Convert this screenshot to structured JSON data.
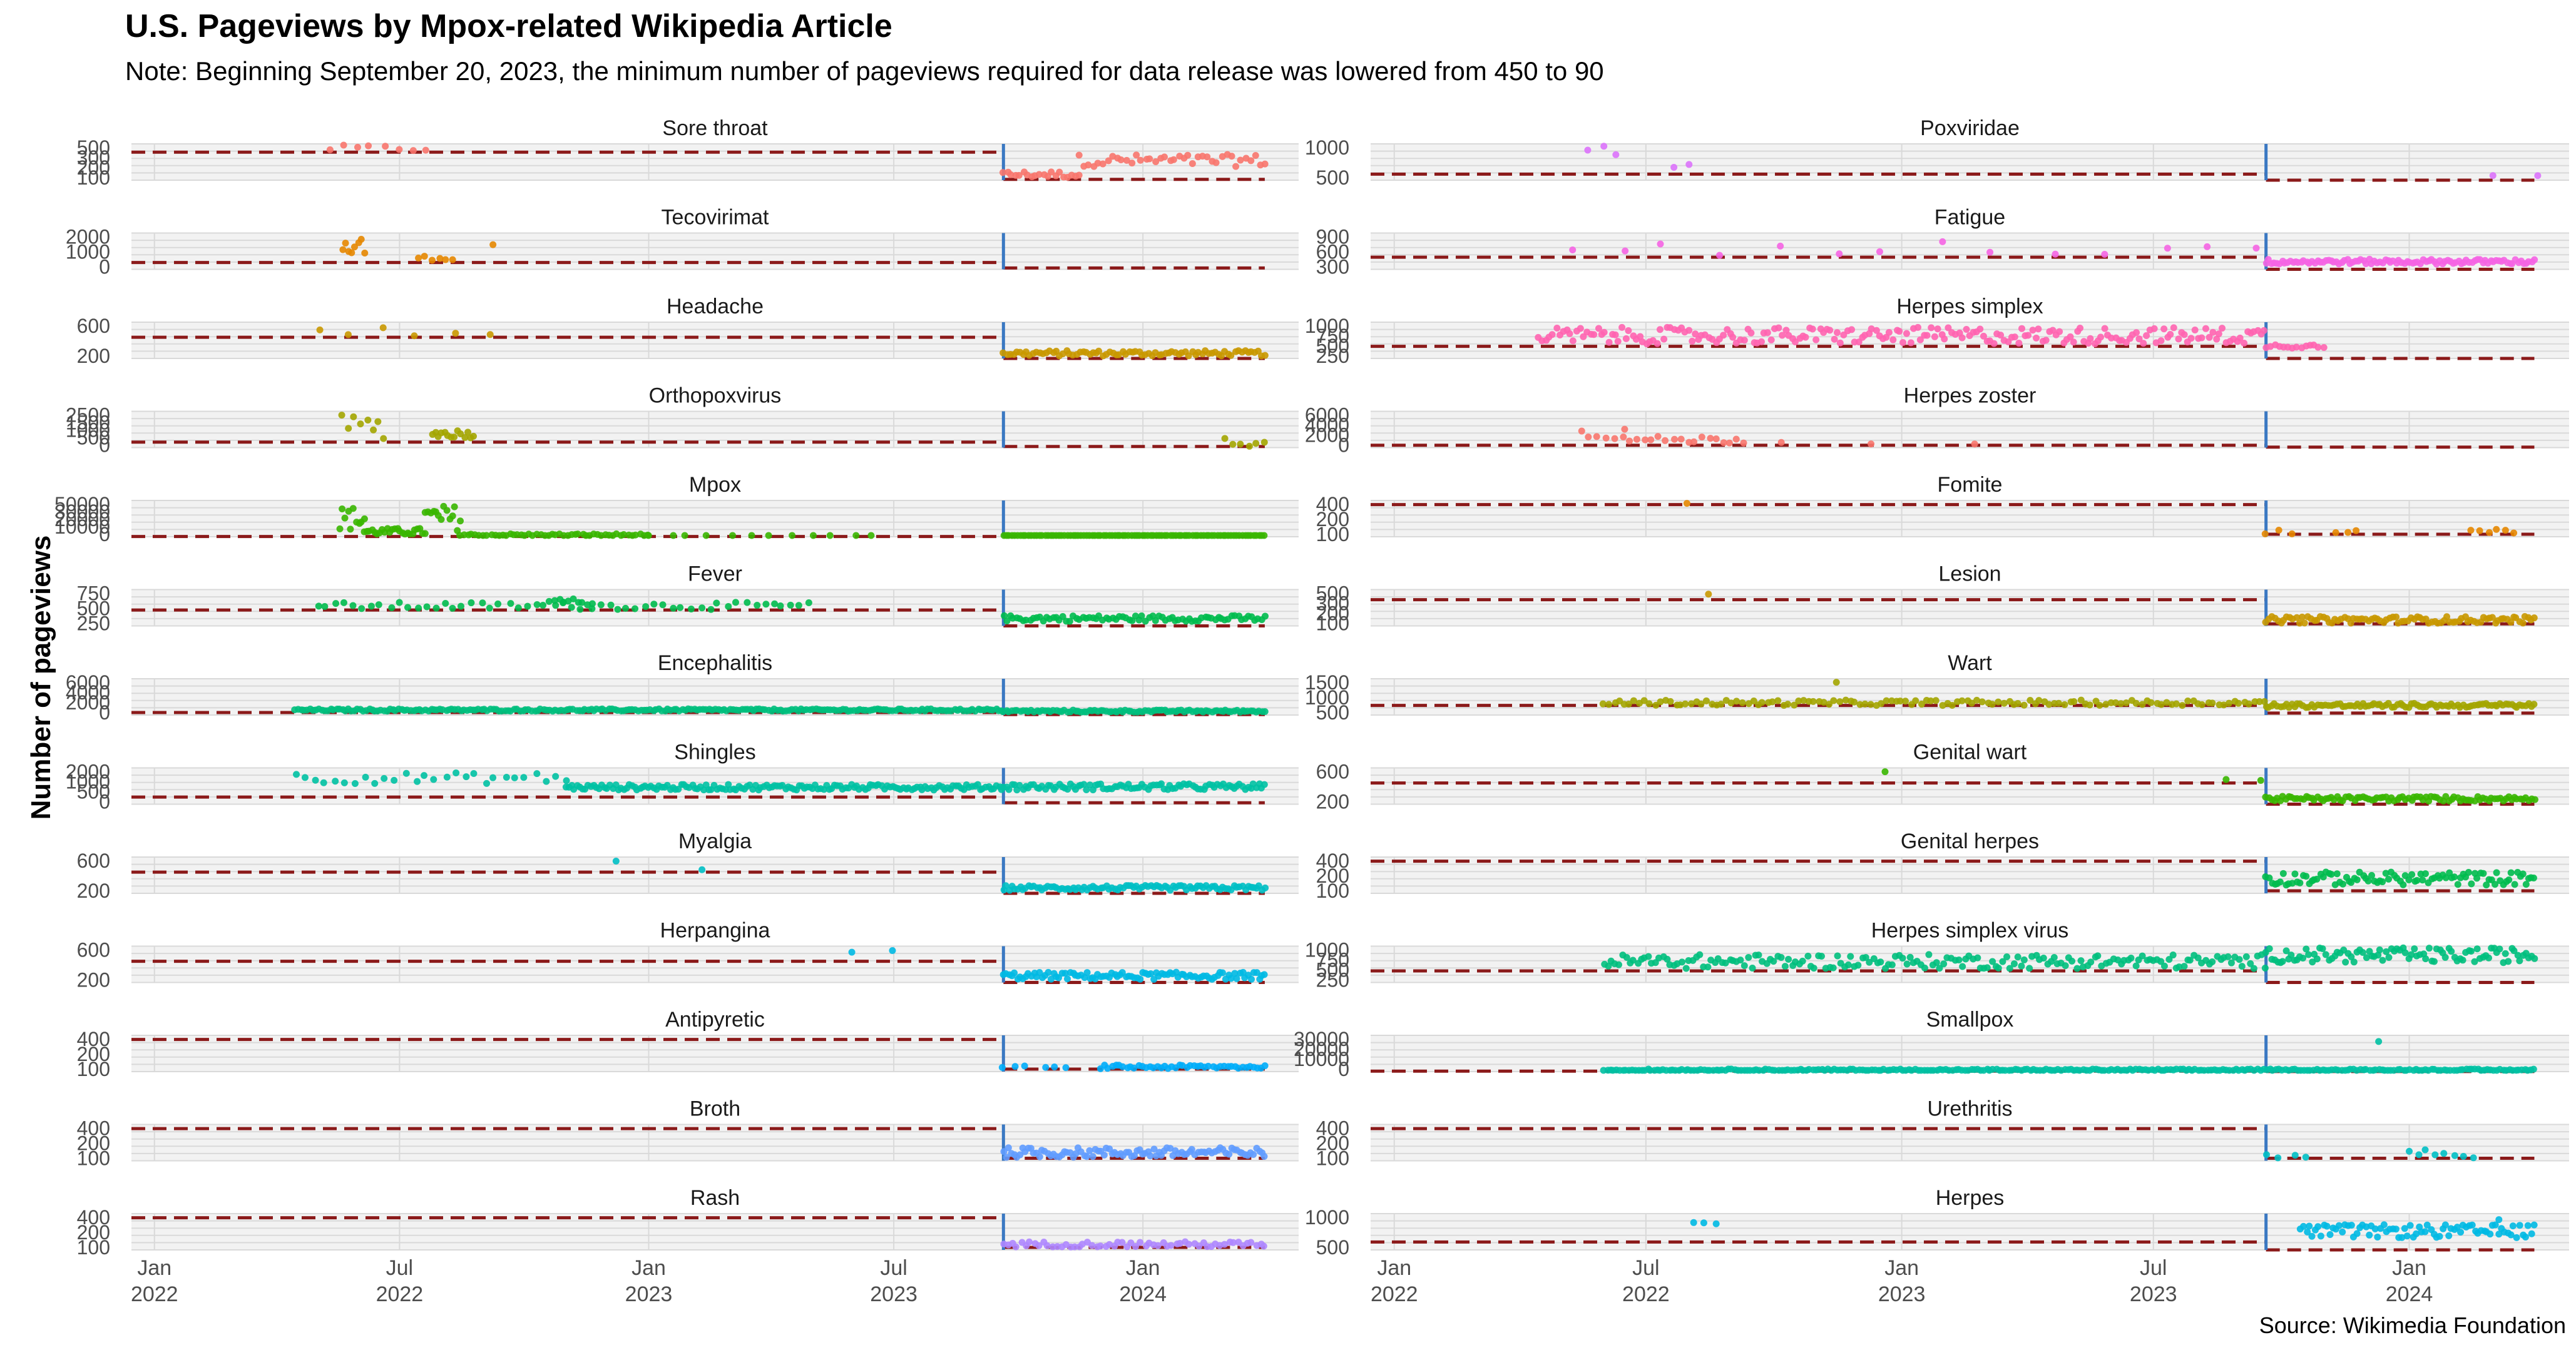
{
  "chart_data": {
    "type": "scatter",
    "title": "U.S. Pageviews by Mpox-related Wikipedia Article",
    "subtitle": "Note: Beginning September 20, 2023, the minimum number of pageviews required for data release was lowered from 450 to 90",
    "ylabel": "Number of pageviews",
    "caption": "Source: Wikimedia Foundation",
    "x_range": [
      "2021-12-15",
      "2024-04-25"
    ],
    "x_ticks": [
      {
        "date": "2022-01-01",
        "line1": "Jan",
        "line2": "2022"
      },
      {
        "date": "2022-07-01",
        "line1": "Jul",
        "line2": "2022"
      },
      {
        "date": "2023-01-01",
        "line1": "Jan",
        "line2": "2023"
      },
      {
        "date": "2023-07-01",
        "line1": "Jul",
        "line2": "2023"
      },
      {
        "date": "2024-01-01",
        "line1": "Jan",
        "line2": "2024"
      }
    ],
    "threshold": {
      "change_date": "2023-09-20",
      "before": 450,
      "after": 90,
      "threshold_color": "#8b1a1a",
      "change_line_color": "#3a78c2"
    },
    "panels": [
      {
        "name": "Sore throat",
        "color": "#f8766d",
        "ylim": [
          80,
          560
        ],
        "ticks": [
          "500",
          "300",
          "200",
          "100"
        ],
        "segments": [
          {
            "from": "2022-05-10",
            "to": "2022-07-20",
            "lo": 455,
            "hi": 545,
            "n": 8
          },
          {
            "from": "2023-09-20",
            "to": "2023-11-15",
            "lo": 110,
            "hi": 200,
            "n": 20
          },
          {
            "from": "2023-11-15",
            "to": "2024-03-31",
            "lo": 260,
            "hi": 420,
            "n": 40
          }
        ]
      },
      {
        "name": "Tecovirimat",
        "color": "#e58700",
        "ylim": [
          0,
          2400
        ],
        "ticks": [
          "2000",
          "1000",
          "0"
        ],
        "segments": [
          {
            "from": "2022-05-20",
            "to": "2022-06-05",
            "lo": 500,
            "hi": 2300,
            "n": 8
          },
          {
            "from": "2022-07-15",
            "to": "2022-08-10",
            "lo": 600,
            "hi": 900,
            "n": 6
          },
          {
            "from": "2022-09-01",
            "to": "2022-09-15",
            "lo": 1400,
            "hi": 1700,
            "n": 1
          }
        ]
      },
      {
        "name": "Headache",
        "color": "#c99800",
        "ylim": [
          100,
          700
        ],
        "ticks": [
          "600",
          "200"
        ],
        "segments": [
          {
            "from": "2022-05-01",
            "to": "2022-09-01",
            "lo": 460,
            "hi": 620,
            "n": 6
          },
          {
            "from": "2023-09-20",
            "to": "2024-03-31",
            "lo": 140,
            "hi": 230,
            "n": 80
          }
        ]
      },
      {
        "name": "Orthopoxvirus",
        "color": "#a3a500",
        "ylim": [
          0,
          3000
        ],
        "ticks": [
          "2500",
          "1500",
          "1000",
          "500",
          "0"
        ],
        "segments": [
          {
            "from": "2022-05-20",
            "to": "2022-06-20",
            "lo": 700,
            "hi": 2700,
            "n": 8
          },
          {
            "from": "2022-07-25",
            "to": "2022-08-25",
            "lo": 800,
            "hi": 1500,
            "n": 14
          },
          {
            "from": "2024-03-01",
            "to": "2024-03-31",
            "lo": 100,
            "hi": 900,
            "n": 6
          }
        ]
      },
      {
        "name": "Mpox",
        "color": "#39b600",
        "ylim": [
          0,
          60000
        ],
        "ticks": [
          "50000",
          "30000",
          "20000",
          "10000",
          "0"
        ],
        "segments": [
          {
            "from": "2022-05-18",
            "to": "2022-06-05",
            "lo": 10000,
            "hi": 50000,
            "n": 10
          },
          {
            "from": "2022-06-05",
            "to": "2022-07-20",
            "lo": 3000,
            "hi": 14000,
            "n": 25
          },
          {
            "from": "2022-07-20",
            "to": "2022-08-15",
            "lo": 10000,
            "hi": 52000,
            "n": 14
          },
          {
            "from": "2022-08-15",
            "to": "2022-12-31",
            "lo": 800,
            "hi": 5000,
            "n": 50
          },
          {
            "from": "2023-01-01",
            "to": "2023-06-15",
            "lo": 400,
            "hi": 1500,
            "n": 12
          },
          {
            "from": "2023-09-20",
            "to": "2024-03-31",
            "lo": 200,
            "hi": 900,
            "n": 95
          }
        ]
      },
      {
        "name": "Fever",
        "color": "#00bb4e",
        "ylim": [
          100,
          900
        ],
        "ticks": [
          "750",
          "500",
          "250"
        ],
        "segments": [
          {
            "from": "2022-05-01",
            "to": "2023-04-30",
            "lo": 460,
            "hi": 620,
            "n": 55
          },
          {
            "from": "2022-10-20",
            "to": "2022-11-20",
            "lo": 560,
            "hi": 700,
            "n": 10
          },
          {
            "from": "2023-09-20",
            "to": "2024-03-31",
            "lo": 200,
            "hi": 330,
            "n": 80
          }
        ]
      },
      {
        "name": "Encephalitis",
        "color": "#00bf7d",
        "ylim": [
          0,
          6500
        ],
        "ticks": [
          "6000",
          "4000",
          "2000",
          "0"
        ],
        "segments": [
          {
            "from": "2022-04-15",
            "to": "2023-09-19",
            "lo": 700,
            "hi": 1100,
            "n": 240
          },
          {
            "from": "2023-09-20",
            "to": "2024-03-31",
            "lo": 500,
            "hi": 900,
            "n": 95
          }
        ]
      },
      {
        "name": "Shingles",
        "color": "#00c1a3",
        "ylim": [
          0,
          2300
        ],
        "ticks": [
          "2000",
          "1000",
          "500",
          "0"
        ],
        "segments": [
          {
            "from": "2022-04-15",
            "to": "2022-10-31",
            "lo": 1300,
            "hi": 2000,
            "n": 28
          },
          {
            "from": "2022-11-01",
            "to": "2023-09-19",
            "lo": 900,
            "hi": 1250,
            "n": 160
          },
          {
            "from": "2023-09-20",
            "to": "2024-03-31",
            "lo": 900,
            "hi": 1300,
            "n": 95
          }
        ]
      },
      {
        "name": "Myalgia",
        "color": "#00bfc4",
        "ylim": [
          100,
          700
        ],
        "ticks": [
          "600",
          "200"
        ],
        "segments": [
          {
            "from": "2022-12-15",
            "to": "2023-02-15",
            "lo": 470,
            "hi": 640,
            "n": 2
          },
          {
            "from": "2023-09-20",
            "to": "2024-03-31",
            "lo": 150,
            "hi": 230,
            "n": 95
          }
        ]
      },
      {
        "name": "Herpangina",
        "color": "#00b9e3",
        "ylim": [
          100,
          700
        ],
        "ticks": [
          "600",
          "200"
        ],
        "segments": [
          {
            "from": "2023-06-01",
            "to": "2023-07-01",
            "lo": 560,
            "hi": 640,
            "n": 2
          },
          {
            "from": "2023-09-20",
            "to": "2024-03-31",
            "lo": 150,
            "hi": 270,
            "n": 95
          }
        ]
      },
      {
        "name": "Antipyretic",
        "color": "#00adfa",
        "ylim": [
          60,
          500
        ],
        "ticks": [
          "400",
          "200",
          "100"
        ],
        "segments": [
          {
            "from": "2023-09-20",
            "to": "2023-10-05",
            "lo": 95,
            "hi": 130,
            "n": 3
          },
          {
            "from": "2023-10-20",
            "to": "2023-11-05",
            "lo": 95,
            "hi": 120,
            "n": 3
          },
          {
            "from": "2023-12-01",
            "to": "2024-03-31",
            "lo": 95,
            "hi": 140,
            "n": 45
          }
        ]
      },
      {
        "name": "Broth",
        "color": "#619cff",
        "ylim": [
          60,
          500
        ],
        "ticks": [
          "400",
          "200",
          "100"
        ],
        "segments": [
          {
            "from": "2023-09-20",
            "to": "2024-03-31",
            "lo": 100,
            "hi": 220,
            "n": 95
          }
        ]
      },
      {
        "name": "Rash",
        "color": "#ae87ff",
        "ylim": [
          60,
          500
        ],
        "ticks": [
          "400",
          "200",
          "100"
        ],
        "segments": [
          {
            "from": "2023-09-20",
            "to": "2024-03-31",
            "lo": 95,
            "hi": 160,
            "n": 60
          }
        ]
      },
      {
        "name": "Poxviridae",
        "color": "#db72fb",
        "ylim": [
          300,
          1200
        ],
        "ticks": [
          "1000",
          "500"
        ],
        "segments": [
          {
            "from": "2022-05-20",
            "to": "2022-06-10",
            "lo": 900,
            "hi": 1150,
            "n": 3
          },
          {
            "from": "2022-07-20",
            "to": "2022-08-01",
            "lo": 600,
            "hi": 700,
            "n": 2
          },
          {
            "from": "2024-03-01",
            "to": "2024-03-31",
            "lo": 400,
            "hi": 480,
            "n": 2
          }
        ]
      },
      {
        "name": "Fatigue",
        "color": "#f564e3",
        "ylim": [
          150,
          1050
        ],
        "ticks": [
          "900",
          "600",
          "300"
        ],
        "segments": [
          {
            "from": "2022-05-01",
            "to": "2023-09-19",
            "lo": 470,
            "hi": 900,
            "n": 14
          },
          {
            "from": "2023-09-20",
            "to": "2024-03-31",
            "lo": 280,
            "hi": 400,
            "n": 100
          }
        ]
      },
      {
        "name": "Herpes simplex",
        "color": "#ff64b0",
        "ylim": [
          100,
          1150
        ],
        "ticks": [
          "1000",
          "750",
          "500",
          "250"
        ],
        "segments": [
          {
            "from": "2022-04-15",
            "to": "2023-09-19",
            "lo": 520,
            "hi": 1000,
            "n": 210
          },
          {
            "from": "2023-09-20",
            "to": "2023-10-31",
            "lo": 400,
            "hi": 520,
            "n": 14
          }
        ]
      },
      {
        "name": "Herpes zoster",
        "color": "#f8766d",
        "ylim": [
          0,
          7000
        ],
        "ticks": [
          "6000",
          "4000",
          "2000",
          "0"
        ],
        "segments": [
          {
            "from": "2022-05-15",
            "to": "2022-06-15",
            "lo": 1500,
            "hi": 6000,
            "n": 6
          },
          {
            "from": "2022-06-15",
            "to": "2022-09-10",
            "lo": 800,
            "hi": 2200,
            "n": 18
          },
          {
            "from": "2022-10-01",
            "to": "2023-03-01",
            "lo": 600,
            "hi": 1200,
            "n": 3
          }
        ]
      },
      {
        "name": "Fomite",
        "color": "#e58700",
        "ylim": [
          60,
          500
        ],
        "ticks": [
          "400",
          "200",
          "100"
        ],
        "segments": [
          {
            "from": "2022-07-25",
            "to": "2022-08-05",
            "lo": 460,
            "hi": 470,
            "n": 1
          },
          {
            "from": "2023-09-20",
            "to": "2023-10-10",
            "lo": 95,
            "hi": 140,
            "n": 3
          },
          {
            "from": "2023-11-10",
            "to": "2023-11-25",
            "lo": 95,
            "hi": 140,
            "n": 3
          },
          {
            "from": "2024-02-15",
            "to": "2024-03-15",
            "lo": 95,
            "hi": 150,
            "n": 6
          }
        ]
      },
      {
        "name": "Lesion",
        "color": "#c99800",
        "ylim": [
          60,
          600
        ],
        "ticks": [
          "500",
          "300",
          "200",
          "100"
        ],
        "segments": [
          {
            "from": "2022-08-10",
            "to": "2022-08-20",
            "lo": 470,
            "hi": 560,
            "n": 1
          },
          {
            "from": "2023-09-20",
            "to": "2024-03-31",
            "lo": 100,
            "hi": 200,
            "n": 90
          }
        ]
      },
      {
        "name": "Wart",
        "color": "#a3a500",
        "ylim": [
          0,
          1700
        ],
        "ticks": [
          "1500",
          "1000",
          "500"
        ],
        "segments": [
          {
            "from": "2022-06-01",
            "to": "2023-09-19",
            "lo": 450,
            "hi": 700,
            "n": 130
          },
          {
            "from": "2022-11-10",
            "to": "2022-11-20",
            "lo": 1450,
            "hi": 1550,
            "n": 1
          },
          {
            "from": "2023-09-20",
            "to": "2024-03-31",
            "lo": 350,
            "hi": 550,
            "n": 95
          }
        ]
      },
      {
        "name": "Genital wart",
        "color": "#39b600",
        "ylim": [
          100,
          700
        ],
        "ticks": [
          "600",
          "200"
        ],
        "segments": [
          {
            "from": "2022-12-15",
            "to": "2022-12-25",
            "lo": 620,
            "hi": 660,
            "n": 1
          },
          {
            "from": "2023-08-20",
            "to": "2023-09-15",
            "lo": 460,
            "hi": 540,
            "n": 2
          },
          {
            "from": "2023-09-20",
            "to": "2024-03-31",
            "lo": 150,
            "hi": 230,
            "n": 95
          }
        ]
      },
      {
        "name": "Genital herpes",
        "color": "#00bb4e",
        "ylim": [
          60,
          500
        ],
        "ticks": [
          "400",
          "200",
          "100"
        ],
        "segments": [
          {
            "from": "2023-09-20",
            "to": "2024-03-31",
            "lo": 160,
            "hi": 320,
            "n": 95
          }
        ]
      },
      {
        "name": "Herpes simplex virus",
        "color": "#00bf7d",
        "ylim": [
          100,
          1200
        ],
        "ticks": [
          "1000",
          "750",
          "500",
          "250"
        ],
        "segments": [
          {
            "from": "2022-06-01",
            "to": "2023-09-19",
            "lo": 520,
            "hi": 950,
            "n": 180
          },
          {
            "from": "2023-09-20",
            "to": "2024-03-31",
            "lo": 700,
            "hi": 1150,
            "n": 95
          }
        ]
      },
      {
        "name": "Smallpox",
        "color": "#00c1a3",
        "ylim": [
          0,
          35000
        ],
        "ticks": [
          "30000",
          "20000",
          "10000",
          "0"
        ],
        "segments": [
          {
            "from": "2022-06-01",
            "to": "2024-03-31",
            "lo": 400,
            "hi": 2500,
            "n": 300
          },
          {
            "from": "2023-12-05",
            "to": "2023-12-15",
            "lo": 28000,
            "hi": 30000,
            "n": 1
          }
        ]
      },
      {
        "name": "Urethritis",
        "color": "#00bfc4",
        "ylim": [
          60,
          500
        ],
        "ticks": [
          "400",
          "200",
          "100"
        ],
        "segments": [
          {
            "from": "2023-09-20",
            "to": "2023-10-20",
            "lo": 95,
            "hi": 140,
            "n": 4
          },
          {
            "from": "2024-01-01",
            "to": "2024-02-15",
            "lo": 95,
            "hi": 200,
            "n": 8
          }
        ]
      },
      {
        "name": "Herpes",
        "color": "#00b9e3",
        "ylim": [
          200,
          1350
        ],
        "ticks": [
          "1000",
          "500"
        ],
        "segments": [
          {
            "from": "2022-08-05",
            "to": "2022-08-20",
            "lo": 950,
            "hi": 1150,
            "n": 3
          },
          {
            "from": "2023-10-15",
            "to": "2024-03-31",
            "lo": 580,
            "hi": 1000,
            "n": 80
          },
          {
            "from": "2024-03-01",
            "to": "2024-03-10",
            "lo": 1150,
            "hi": 1250,
            "n": 1
          }
        ]
      }
    ]
  }
}
